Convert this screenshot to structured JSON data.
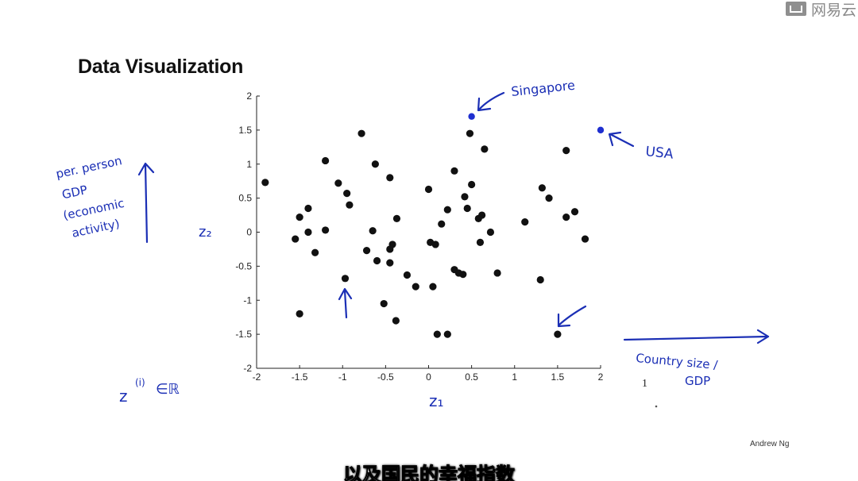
{
  "watermark": {
    "text": "网易云"
  },
  "slide": {
    "title": "Data Visualization",
    "credit": "Andrew Ng"
  },
  "subtitle": "以及国民的幸福指数",
  "annotations": {
    "y_axis_note": [
      "per. person",
      "GDP",
      "(economic",
      "activity)"
    ],
    "z2_label": "z₂",
    "z1_label": "z₁",
    "x_axis_note": [
      "Country size /",
      "GDP"
    ],
    "singapore": "Singapore",
    "usa": "USA",
    "membership": "z^(i) ∈ ℝ",
    "membership_base": "z",
    "membership_sup": "(i)",
    "membership_rest": "∈ℝ",
    "stray_one": "1"
  },
  "colors": {
    "ink": "#1b2fb5",
    "points": "#111111",
    "highlight": "#1f2fd0"
  },
  "chart_data": {
    "type": "scatter",
    "xlim": [
      -2,
      2
    ],
    "ylim": [
      -2,
      2
    ],
    "xticks": [
      "-2",
      "-1.5",
      "-1",
      "-0.5",
      "0",
      "0.5",
      "1",
      "1.5",
      "2"
    ],
    "yticks": [
      "2",
      "1.5",
      "1",
      "0.5",
      "0",
      "-0.5",
      "-1",
      "-1.5",
      "-2"
    ],
    "grid": false,
    "series": [
      {
        "points": [
          [
            -1.9,
            0.73
          ],
          [
            -1.5,
            0.22
          ],
          [
            -1.4,
            0.35
          ],
          [
            -1.55,
            -0.1
          ],
          [
            -1.4,
            0.0
          ],
          [
            -1.2,
            0.03
          ],
          [
            -1.32,
            -0.3
          ],
          [
            -1.2,
            1.05
          ],
          [
            -1.05,
            0.72
          ],
          [
            -0.95,
            0.57
          ],
          [
            -0.92,
            0.4
          ],
          [
            -0.78,
            1.45
          ],
          [
            -0.72,
            -0.27
          ],
          [
            -0.62,
            1.0
          ],
          [
            -0.65,
            0.02
          ],
          [
            -0.6,
            -0.42
          ],
          [
            -0.45,
            0.8
          ],
          [
            -0.45,
            -0.25
          ],
          [
            -0.42,
            -0.18
          ],
          [
            -0.45,
            -0.45
          ],
          [
            -0.37,
            0.2
          ],
          [
            -0.25,
            -0.63
          ],
          [
            -0.15,
            -0.8
          ],
          [
            -0.52,
            -1.05
          ],
          [
            -0.38,
            -1.3
          ],
          [
            -1.5,
            -1.2
          ],
          [
            -0.97,
            -0.68
          ],
          [
            0.0,
            0.63
          ],
          [
            0.02,
            -0.15
          ],
          [
            0.08,
            -0.18
          ],
          [
            0.05,
            -0.8
          ],
          [
            0.15,
            0.12
          ],
          [
            0.22,
            0.33
          ],
          [
            0.3,
            0.9
          ],
          [
            0.42,
            0.52
          ],
          [
            0.45,
            0.35
          ],
          [
            0.5,
            0.7
          ],
          [
            0.48,
            1.45
          ],
          [
            0.58,
            0.2
          ],
          [
            0.62,
            0.25
          ],
          [
            0.6,
            -0.15
          ],
          [
            0.65,
            1.22
          ],
          [
            0.72,
            0.0
          ],
          [
            0.3,
            -0.55
          ],
          [
            0.35,
            -0.6
          ],
          [
            0.4,
            -0.62
          ],
          [
            0.8,
            -0.6
          ],
          [
            0.1,
            -1.5
          ],
          [
            0.22,
            -1.5
          ],
          [
            1.12,
            0.15
          ],
          [
            1.32,
            0.65
          ],
          [
            1.4,
            0.5
          ],
          [
            1.3,
            -0.7
          ],
          [
            1.6,
            1.2
          ],
          [
            1.6,
            0.22
          ],
          [
            1.7,
            0.3
          ],
          [
            1.82,
            -0.1
          ],
          [
            1.5,
            -1.5
          ]
        ]
      },
      {
        "points": [
          [
            0.5,
            1.7
          ],
          [
            2.0,
            1.5
          ]
        ]
      }
    ]
  }
}
